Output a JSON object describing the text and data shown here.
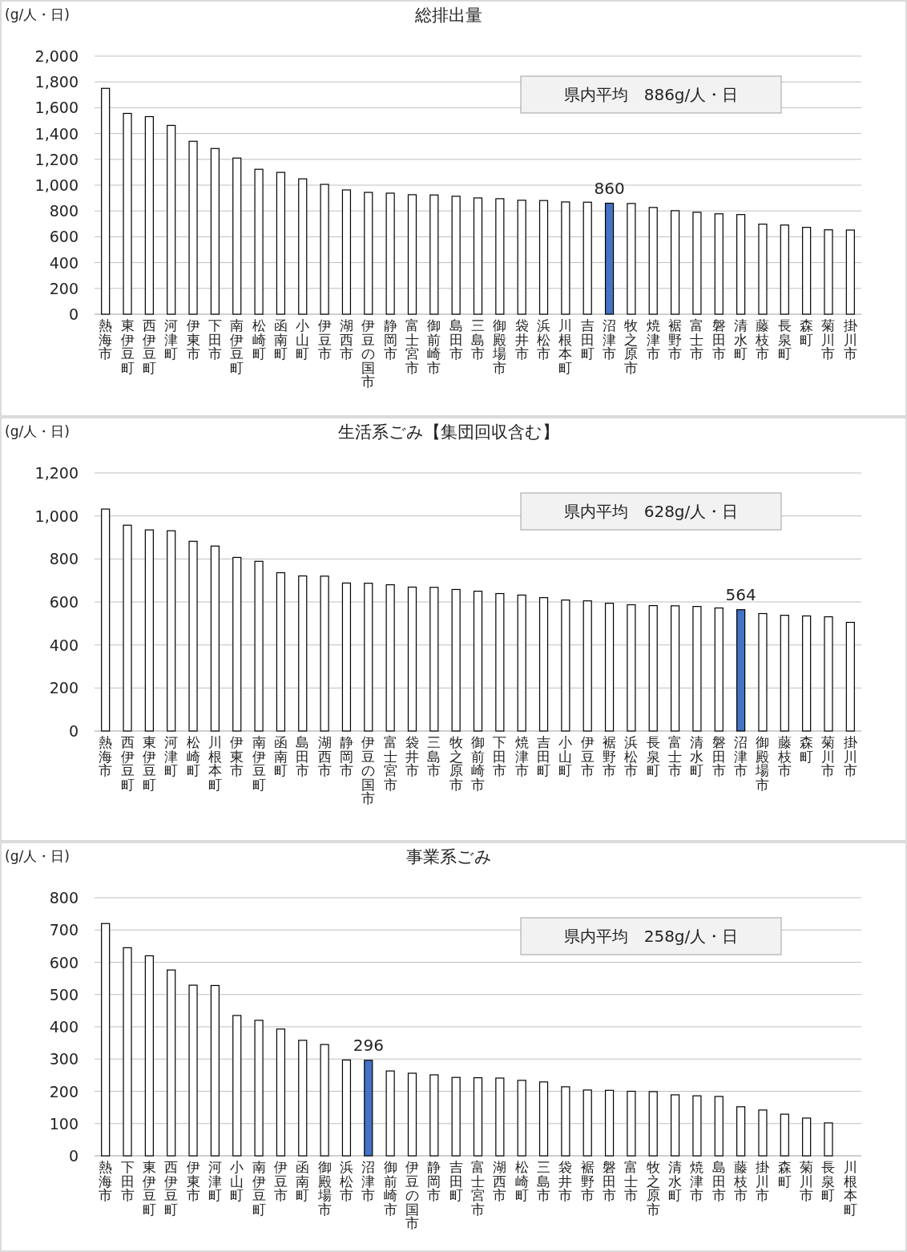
{
  "chart_data": [
    {
      "type": "bar",
      "title": "総排出量",
      "ylabel": "(g/人・日)",
      "grid": "y",
      "categories": [
        "熱海市",
        "東伊豆町",
        "西伊豆町",
        "河津町",
        "伊東市",
        "下田市",
        "南伊豆町",
        "松崎町",
        "函南町",
        "小山町",
        "伊豆市",
        "湖西市",
        "伊豆の国市",
        "静岡市",
        "富士宮市",
        "御前崎市",
        "島田市",
        "三島市",
        "御殿場市",
        "袋井市",
        "浜松市",
        "川根本町",
        "吉田町",
        "沼津市",
        "牧之原市",
        "焼津市",
        "裾野市",
        "富士市",
        "磐田市",
        "清水町",
        "藤枝市",
        "長泉町",
        "森町",
        "菊川市",
        "掛川市"
      ],
      "values": [
        1750,
        1556,
        1531,
        1463,
        1340,
        1284,
        1210,
        1123,
        1099,
        1049,
        1006,
        963,
        944,
        938,
        926,
        924,
        914,
        901,
        895,
        883,
        881,
        870,
        868,
        860,
        858,
        827,
        802,
        790,
        778,
        772,
        698,
        691,
        673,
        654,
        652
      ],
      "colors": [
        "#ffffff",
        "#ffffff",
        "#ffffff",
        "#ffffff",
        "#ffffff",
        "#ffffff",
        "#ffffff",
        "#ffffff",
        "#ffffff",
        "#ffffff",
        "#ffffff",
        "#ffffff",
        "#ffffff",
        "#ffffff",
        "#ffffff",
        "#ffffff",
        "#ffffff",
        "#ffffff",
        "#ffffff",
        "#ffffff",
        "#ffffff",
        "#ffffff",
        "#ffffff",
        "#4472c4",
        "#ffffff",
        "#ffffff",
        "#ffffff",
        "#ffffff",
        "#ffffff",
        "#ffffff",
        "#ffffff",
        "#ffffff",
        "#ffffff",
        "#ffffff",
        "#ffffff"
      ],
      "value_labels": [
        null,
        null,
        null,
        null,
        null,
        null,
        null,
        null,
        null,
        null,
        null,
        null,
        null,
        null,
        null,
        null,
        null,
        null,
        null,
        null,
        null,
        null,
        null,
        "860",
        null,
        null,
        null,
        null,
        null,
        null,
        null,
        null,
        null,
        null,
        null
      ],
      "ylim": [
        0,
        2000
      ],
      "yticks": [
        0,
        200,
        400,
        600,
        800,
        {
          "value": 1000,
          "label": "1,000"
        },
        {
          "value": 1200,
          "label": "1,200"
        },
        {
          "value": 1400,
          "label": "1,400"
        },
        {
          "value": 1600,
          "label": "1,600"
        },
        {
          "value": 1800,
          "label": "1,800"
        },
        {
          "value": 2000,
          "label": "2,000"
        }
      ],
      "annotations": [
        "県内平均　886g/人・日"
      ]
    },
    {
      "type": "bar",
      "title": "生活系ごみ【集団回収含む】",
      "ylabel": "(g/人・日)",
      "grid": "y",
      "categories": [
        "熱海市",
        "西伊豆町",
        "東伊豆町",
        "河津町",
        "松崎町",
        "川根本町",
        "伊東市",
        "南伊豆町",
        "函南町",
        "島田市",
        "湖西市",
        "静岡市",
        "伊豆の国市",
        "富士宮市",
        "袋井市",
        "三島市",
        "牧之原市",
        "御前崎市",
        "下田市",
        "焼津市",
        "吉田町",
        "小山町",
        "伊豆市",
        "裾野市",
        "浜松市",
        "長泉町",
        "富士市",
        "清水町",
        "磐田市",
        "沼津市",
        "御殿場市",
        "藤枝市",
        "森町",
        "菊川市",
        "掛川市"
      ],
      "values": [
        1032,
        957,
        935,
        931,
        882,
        860,
        807,
        789,
        736,
        721,
        720,
        688,
        687,
        680,
        669,
        668,
        658,
        650,
        639,
        632,
        620,
        609,
        605,
        594,
        587,
        583,
        582,
        579,
        572,
        564,
        546,
        538,
        535,
        531,
        505
      ],
      "colors": [
        "#ffffff",
        "#ffffff",
        "#ffffff",
        "#ffffff",
        "#ffffff",
        "#ffffff",
        "#ffffff",
        "#ffffff",
        "#ffffff",
        "#ffffff",
        "#ffffff",
        "#ffffff",
        "#ffffff",
        "#ffffff",
        "#ffffff",
        "#ffffff",
        "#ffffff",
        "#ffffff",
        "#ffffff",
        "#ffffff",
        "#ffffff",
        "#ffffff",
        "#ffffff",
        "#ffffff",
        "#ffffff",
        "#ffffff",
        "#ffffff",
        "#ffffff",
        "#ffffff",
        "#4472c4",
        "#ffffff",
        "#ffffff",
        "#ffffff",
        "#ffffff",
        "#ffffff"
      ],
      "value_labels": [
        null,
        null,
        null,
        null,
        null,
        null,
        null,
        null,
        null,
        null,
        null,
        null,
        null,
        null,
        null,
        null,
        null,
        null,
        null,
        null,
        null,
        null,
        null,
        null,
        null,
        null,
        null,
        null,
        null,
        "564",
        null,
        null,
        null,
        null,
        null
      ],
      "ylim": [
        0,
        1200
      ],
      "yticks": [
        0,
        200,
        400,
        600,
        800,
        {
          "value": 1000,
          "label": "1,000"
        },
        {
          "value": 1200,
          "label": "1,200"
        }
      ],
      "annotations": [
        "県内平均　628g/人・日"
      ]
    },
    {
      "type": "bar",
      "title": "事業系ごみ",
      "ylabel": "(g/人・日)",
      "grid": "y",
      "categories": [
        "熱海市",
        "下田市",
        "東伊豆町",
        "西伊豆町",
        "伊東市",
        "河津町",
        "小山町",
        "南伊豆町",
        "伊豆市",
        "函南町",
        "御殿場市",
        "浜松市",
        "沼津市",
        "御前崎市",
        "伊豆の国市",
        "静岡市",
        "吉田町",
        "富士宮市",
        "湖西市",
        "松崎町",
        "三島市",
        "袋井市",
        "裾野市",
        "磐田市",
        "富士市",
        "牧之原市",
        "清水町",
        "焼津市",
        "島田市",
        "藤枝市",
        "掛川市",
        "森町",
        "菊川市",
        "長泉町",
        "川根本町"
      ],
      "values": [
        720,
        645,
        620,
        576,
        529,
        528,
        435,
        420,
        393,
        358,
        345,
        297,
        296,
        263,
        256,
        251,
        243,
        242,
        241,
        234,
        229,
        214,
        204,
        203,
        200,
        199,
        189,
        186,
        184,
        152,
        142,
        129,
        117,
        102,
        null
      ],
      "colors": [
        "#ffffff",
        "#ffffff",
        "#ffffff",
        "#ffffff",
        "#ffffff",
        "#ffffff",
        "#ffffff",
        "#ffffff",
        "#ffffff",
        "#ffffff",
        "#ffffff",
        "#ffffff",
        "#4472c4",
        "#ffffff",
        "#ffffff",
        "#ffffff",
        "#ffffff",
        "#ffffff",
        "#ffffff",
        "#ffffff",
        "#ffffff",
        "#ffffff",
        "#ffffff",
        "#ffffff",
        "#ffffff",
        "#ffffff",
        "#ffffff",
        "#ffffff",
        "#ffffff",
        "#ffffff",
        "#ffffff",
        "#ffffff",
        "#ffffff",
        "#ffffff",
        "#ffffff"
      ],
      "value_labels": [
        null,
        null,
        null,
        null,
        null,
        null,
        null,
        null,
        null,
        null,
        null,
        null,
        "296",
        null,
        null,
        null,
        null,
        null,
        null,
        null,
        null,
        null,
        null,
        null,
        null,
        null,
        null,
        null,
        null,
        null,
        null,
        null,
        null,
        null,
        null
      ],
      "ylim": [
        0,
        800
      ],
      "yticks": [
        0,
        100,
        200,
        300,
        400,
        500,
        600,
        700,
        800
      ],
      "annotations": [
        "県内平均　258g/人・日"
      ]
    }
  ]
}
